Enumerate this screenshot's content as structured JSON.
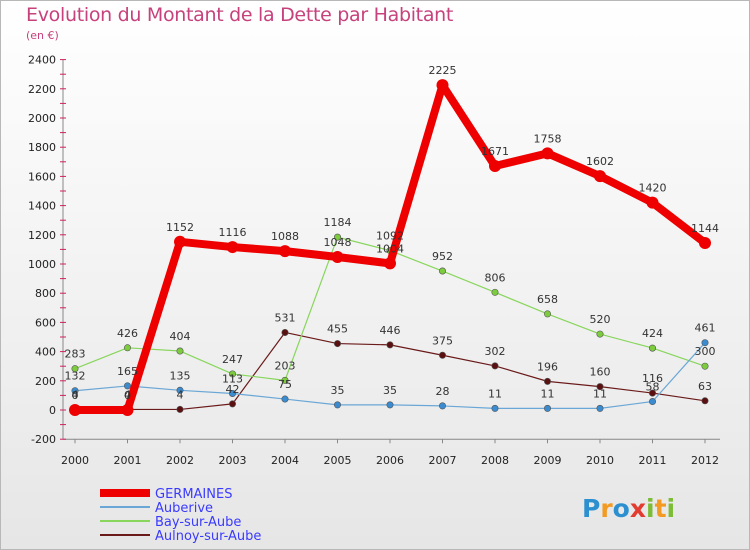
{
  "title": "Evolution du Montant de la Dette par Habitant",
  "subtitle": "(en €)",
  "brand": {
    "letters": [
      "P",
      "r",
      "o",
      "x",
      "i",
      "t",
      "i"
    ],
    "colors": [
      "#2c8fd0",
      "#f39a23",
      "#2c8fd0",
      "#e33b2f",
      "#7cbc36",
      "#f39a23",
      "#7cbc36"
    ]
  },
  "chart_data": {
    "type": "line",
    "x": [
      "2000",
      "2001",
      "2002",
      "2003",
      "2004",
      "2005",
      "2006",
      "2007",
      "2008",
      "2009",
      "2010",
      "2011",
      "2012"
    ],
    "ylim": [
      -200,
      2400
    ],
    "yticks": [
      -200,
      0,
      200,
      400,
      600,
      800,
      1000,
      1200,
      1400,
      1600,
      1800,
      2000,
      2200,
      2400
    ],
    "grid": false,
    "legend_position": "bottom-left",
    "series": [
      {
        "name": "Aulnoy-sur-Aube",
        "color": "#6b1a1a",
        "dot": "#5a1010",
        "width": 1.2,
        "values": [
          4,
          4,
          4,
          42,
          531,
          455,
          446,
          375,
          302,
          196,
          160,
          116,
          63
        ],
        "labels": [
          "4",
          "4",
          "4",
          "42",
          "531",
          "455",
          "446",
          "375",
          "302",
          "196",
          "160",
          "116",
          "63"
        ]
      },
      {
        "name": "Bay-sur-Aube",
        "color": "#88d65c",
        "dot": "#7ccc3e",
        "width": 1.2,
        "values": [
          283,
          426,
          404,
          247,
          203,
          1184,
          1092,
          952,
          806,
          658,
          520,
          424,
          300
        ],
        "labels": [
          "283",
          "426",
          "404",
          "247",
          "203",
          "1184",
          "1092",
          "952",
          "806",
          "658",
          "520",
          "424",
          "300"
        ]
      },
      {
        "name": "Auberive",
        "color": "#6aa7d6",
        "dot": "#3a8bd0",
        "width": 1.2,
        "values": [
          132,
          165,
          135,
          113,
          75,
          35,
          35,
          28,
          11,
          11,
          11,
          58,
          461
        ],
        "labels": [
          "132",
          "165",
          "135",
          "113",
          "75",
          "35",
          "35",
          "28",
          "11",
          "11",
          "11",
          "58",
          "461"
        ]
      },
      {
        "name": "GERMAINES",
        "color": "#ee0000",
        "dot": "#ee0000",
        "width": 8,
        "values": [
          0,
          0,
          1152,
          1116,
          1088,
          1048,
          1004,
          2225,
          1671,
          1758,
          1602,
          1420,
          1144
        ],
        "labels": [
          "0",
          "0",
          "1152",
          "1116",
          "1088",
          "1048",
          "1004",
          "2225",
          "1671",
          "1758",
          "1602",
          "1420",
          "1144"
        ]
      }
    ],
    "legend": [
      "GERMAINES",
      "Auberive",
      "Bay-sur-Aube",
      "Aulnoy-sur-Aube"
    ]
  }
}
